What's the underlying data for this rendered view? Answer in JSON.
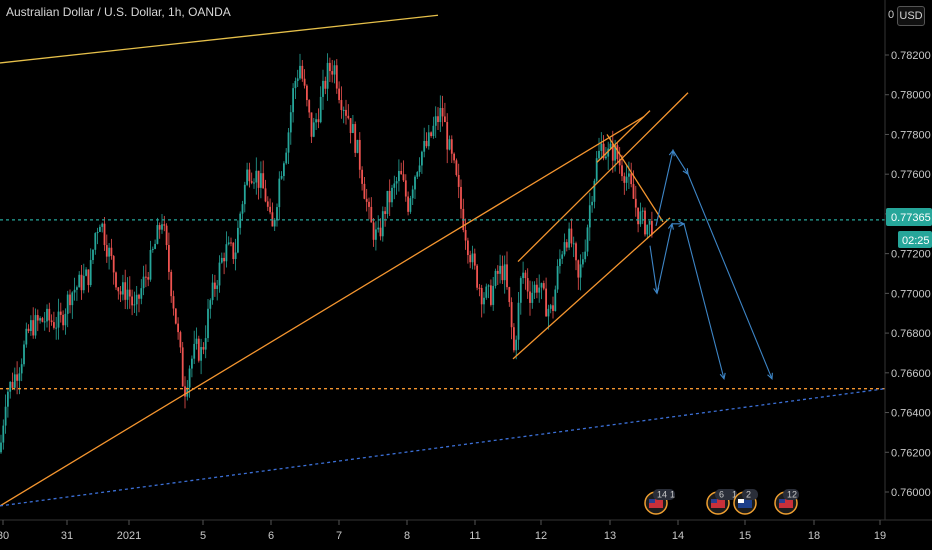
{
  "header": {
    "title": "Australian Dollar / U.S. Dollar, 1h, OANDA",
    "currency": "USD"
  },
  "price_axis": {
    "current_price": "0.77365",
    "countdown": "02:25",
    "current_color": "#26a69a",
    "top_clip": "0"
  },
  "event_markers": [
    {
      "count": "14",
      "flag": "us-flag-icon",
      "index_label": "1"
    },
    {
      "count": "6",
      "flag": "us-flag-icon",
      "index_label": "1"
    },
    {
      "count": "2",
      "flag": "au-flag-icon",
      "index_label": ""
    },
    {
      "count": "12",
      "flag": "us-flag-icon",
      "index_label": ""
    }
  ],
  "chart_data": {
    "type": "candlestick",
    "title": "Australian Dollar / U.S. Dollar, 1h, OANDA",
    "y_ticks": [
      "0.78200",
      "0.78000",
      "0.77800",
      "0.77600",
      "0.77400",
      "0.77200",
      "0.77000",
      "0.76800",
      "0.76600",
      "0.76400",
      "0.76200",
      "0.76000"
    ],
    "x_ticks": [
      "30",
      "31",
      "2021",
      "5",
      "6",
      "7",
      "8",
      "11",
      "12",
      "13",
      "14",
      "15",
      "18",
      "19"
    ],
    "ylim": [
      0.7593,
      0.783
    ],
    "up_color": "#26a69a",
    "down_color": "#ef5350",
    "price_path": [
      [
        0,
        0.762
      ],
      [
        6,
        0.765
      ],
      [
        12,
        0.7655
      ],
      [
        20,
        0.7665
      ],
      [
        30,
        0.7683
      ],
      [
        45,
        0.7687
      ],
      [
        60,
        0.7685
      ],
      [
        70,
        0.77
      ],
      [
        80,
        0.7705
      ],
      [
        90,
        0.771
      ],
      [
        95,
        0.773
      ],
      [
        100,
        0.7738
      ],
      [
        108,
        0.7722
      ],
      [
        115,
        0.771
      ],
      [
        120,
        0.77
      ],
      [
        128,
        0.7702
      ],
      [
        135,
        0.769
      ],
      [
        140,
        0.77
      ],
      [
        150,
        0.7715
      ],
      [
        158,
        0.773
      ],
      [
        162,
        0.7738
      ],
      [
        168,
        0.7715
      ],
      [
        175,
        0.769
      ],
      [
        180,
        0.767
      ],
      [
        184,
        0.765
      ],
      [
        190,
        0.7665
      ],
      [
        196,
        0.7672
      ],
      [
        202,
        0.767
      ],
      [
        210,
        0.7695
      ],
      [
        218,
        0.771
      ],
      [
        225,
        0.7722
      ],
      [
        235,
        0.772
      ],
      [
        240,
        0.774
      ],
      [
        248,
        0.7763
      ],
      [
        256,
        0.776
      ],
      [
        265,
        0.775
      ],
      [
        272,
        0.773
      ],
      [
        280,
        0.776
      ],
      [
        288,
        0.778
      ],
      [
        294,
        0.7805
      ],
      [
        300,
        0.7815
      ],
      [
        305,
        0.78
      ],
      [
        312,
        0.778
      ],
      [
        320,
        0.7795
      ],
      [
        328,
        0.7812
      ],
      [
        334,
        0.7815
      ],
      [
        340,
        0.78
      ],
      [
        348,
        0.779
      ],
      [
        356,
        0.7775
      ],
      [
        362,
        0.776
      ],
      [
        370,
        0.7735
      ],
      [
        378,
        0.7727
      ],
      [
        386,
        0.7745
      ],
      [
        392,
        0.775
      ],
      [
        400,
        0.776
      ],
      [
        408,
        0.7745
      ],
      [
        412,
        0.7755
      ],
      [
        420,
        0.777
      ],
      [
        428,
        0.7775
      ],
      [
        435,
        0.7785
      ],
      [
        442,
        0.7792
      ],
      [
        448,
        0.7775
      ],
      [
        455,
        0.776
      ],
      [
        462,
        0.774
      ],
      [
        468,
        0.7725
      ],
      [
        474,
        0.7712
      ],
      [
        482,
        0.77
      ],
      [
        490,
        0.7698
      ],
      [
        498,
        0.771
      ],
      [
        504,
        0.7712
      ],
      [
        510,
        0.769
      ],
      [
        514,
        0.767
      ],
      [
        518,
        0.769
      ],
      [
        522,
        0.7712
      ],
      [
        530,
        0.77
      ],
      [
        538,
        0.7705
      ],
      [
        545,
        0.7695
      ],
      [
        552,
        0.769
      ],
      [
        558,
        0.7712
      ],
      [
        565,
        0.773
      ],
      [
        572,
        0.7725
      ],
      [
        578,
        0.7705
      ],
      [
        585,
        0.7725
      ],
      [
        590,
        0.7745
      ],
      [
        596,
        0.7765
      ],
      [
        602,
        0.7775
      ],
      [
        608,
        0.777
      ],
      [
        614,
        0.7772
      ],
      [
        620,
        0.7765
      ],
      [
        626,
        0.776
      ],
      [
        632,
        0.775
      ],
      [
        638,
        0.774
      ],
      [
        644,
        0.7735
      ],
      [
        650,
        0.7734
      ],
      [
        654,
        0.7736
      ]
    ],
    "lines": [
      {
        "name": "upper-trendline",
        "color": "#e6c04a",
        "dashed": false,
        "points": [
          [
            0,
            0.7816
          ],
          [
            438,
            0.784
          ]
        ]
      },
      {
        "name": "long-support-trendline",
        "color": "#f4952f",
        "dashed": false,
        "points": [
          [
            0,
            0.7593
          ],
          [
            644,
            0.7789
          ]
        ]
      },
      {
        "name": "channel-lower",
        "color": "#f4952f",
        "dashed": false,
        "points": [
          [
            513,
            0.7667
          ],
          [
            670,
            0.7738
          ]
        ]
      },
      {
        "name": "channel-upper",
        "color": "#f4952f",
        "dashed": false,
        "points": [
          [
            518,
            0.7716
          ],
          [
            688,
            0.7801
          ]
        ]
      },
      {
        "name": "wedge-upper",
        "color": "#f4952f",
        "dashed": false,
        "points": [
          [
            597,
            0.7766
          ],
          [
            650,
            0.7792
          ]
        ]
      },
      {
        "name": "wedge-lower",
        "color": "#f4952f",
        "dashed": false,
        "points": [
          [
            607,
            0.778
          ],
          [
            663,
            0.7736
          ]
        ]
      },
      {
        "name": "horizontal-support",
        "color": "#f4952f",
        "dashed": true,
        "points": [
          [
            0,
            0.7652
          ],
          [
            885,
            0.7652
          ]
        ]
      },
      {
        "name": "blue-dotted-trendline",
        "color": "#3b6fd6",
        "dashed": true,
        "points": [
          [
            0,
            0.7593
          ],
          [
            885,
            0.7652
          ]
        ]
      },
      {
        "name": "current-price-line",
        "color": "#26a69a",
        "dashed": true,
        "points": [
          [
            0,
            0.7737
          ],
          [
            885,
            0.7737
          ]
        ]
      }
    ],
    "projection_paths": [
      {
        "name": "projection-a",
        "color": "#3d85c6",
        "points": [
          [
            650,
            0.7724
          ],
          [
            657,
            0.77
          ],
          [
            672,
            0.7735
          ],
          [
            684,
            0.7735
          ],
          [
            724,
            0.7657
          ]
        ]
      },
      {
        "name": "projection-b",
        "color": "#3d85c6",
        "points": [
          [
            656,
            0.7734
          ],
          [
            673,
            0.7772
          ],
          [
            688,
            0.776
          ],
          [
            772,
            0.7657
          ]
        ]
      }
    ]
  }
}
